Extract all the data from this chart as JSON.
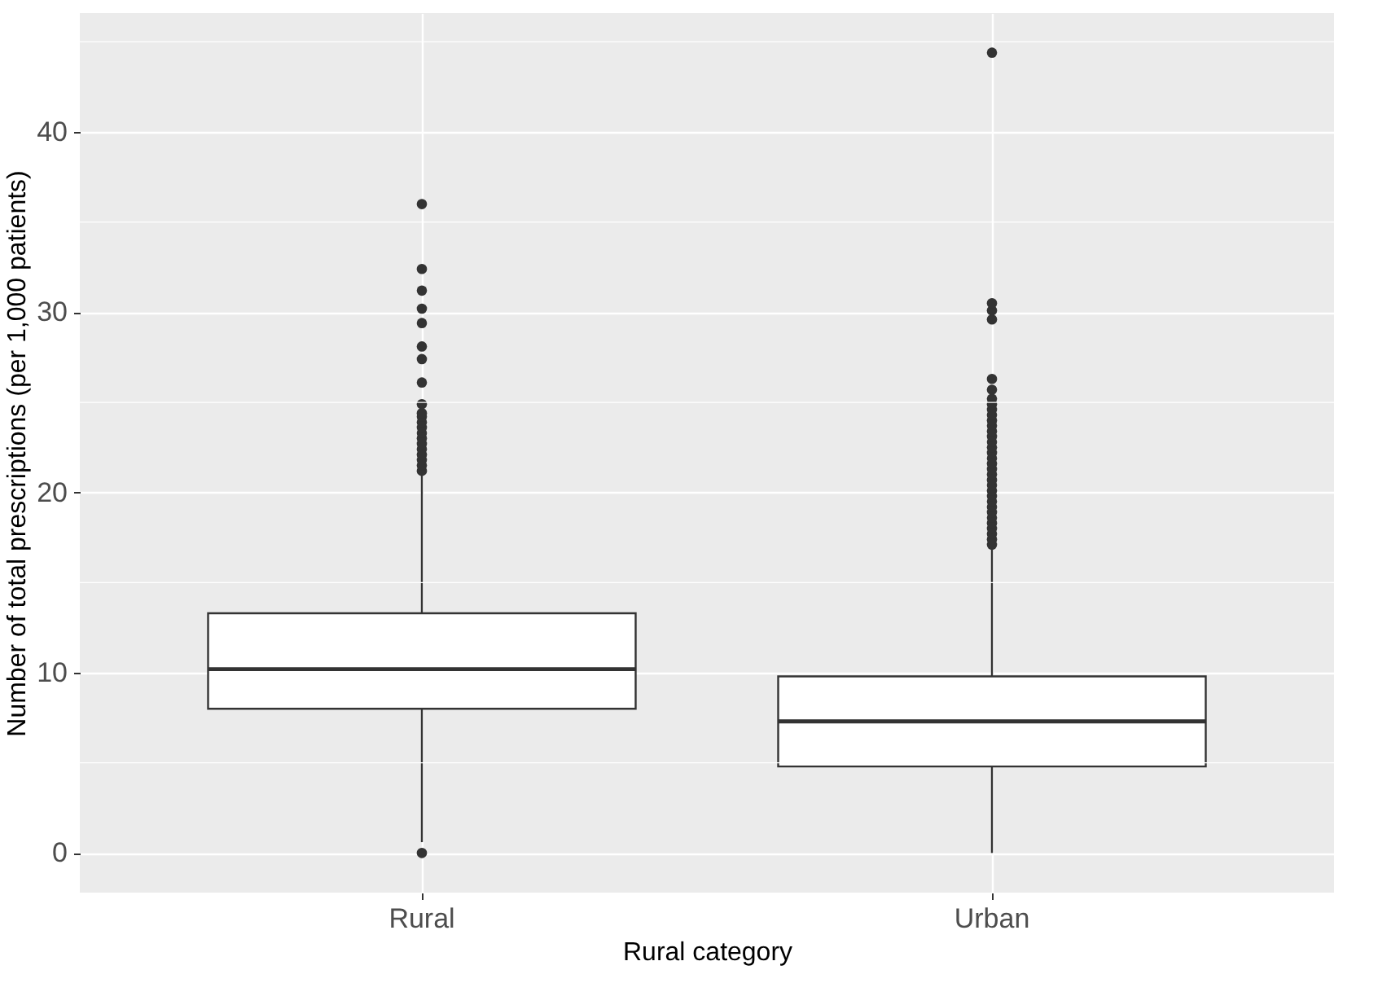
{
  "chart_data": {
    "type": "box",
    "xlabel": "Rural category",
    "ylabel": "Number of total prescriptions (per 1,000 patients)",
    "categories": [
      "Rural",
      "Urban"
    ],
    "boxes": [
      {
        "low": 0.6,
        "q1": 8.0,
        "median": 10.2,
        "q3": 13.3,
        "high": 21.1,
        "outliers": [
          0,
          21.2,
          21.5,
          21.8,
          22.1,
          22.4,
          22.7,
          23.0,
          23.3,
          23.6,
          23.9,
          24.2,
          24.4,
          24.9,
          26.1,
          27.4,
          28.1,
          29.4,
          30.2,
          31.2,
          32.4,
          36.0
        ]
      },
      {
        "low": 0,
        "q1": 4.8,
        "median": 7.3,
        "q3": 9.8,
        "high": 17.0,
        "outliers": [
          17.1,
          17.4,
          17.7,
          18.0,
          18.3,
          18.6,
          18.9,
          19.2,
          19.5,
          19.8,
          20.1,
          20.4,
          20.7,
          21.0,
          21.3,
          21.6,
          21.9,
          22.2,
          22.5,
          22.8,
          23.1,
          23.4,
          23.7,
          24.0,
          24.3,
          24.6,
          24.9,
          25.2,
          25.7,
          26.3,
          29.6,
          30.1,
          30.5,
          44.4
        ]
      }
    ],
    "color": "#ffffff",
    "ylim": [
      -2.2,
      46.6
    ],
    "yticks": [
      0,
      10,
      20,
      30,
      40
    ],
    "grid": true
  }
}
